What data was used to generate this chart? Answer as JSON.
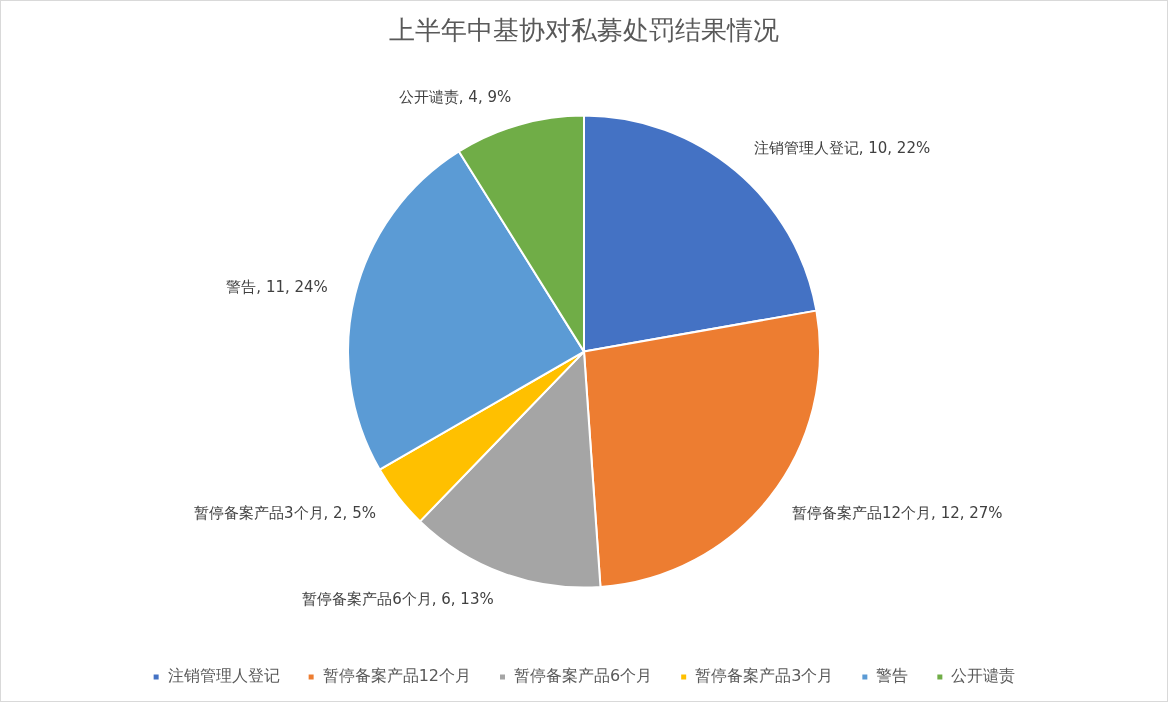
{
  "chart_data": {
    "type": "pie",
    "title": "上半年中基协对私募处罚结果情况",
    "categories": [
      "注销管理人登记",
      "暂停备案产品12个月",
      "暂停备案产品6个月",
      "暂停备案产品3个月",
      "警告",
      "公开谴责"
    ],
    "values": [
      10,
      12,
      6,
      2,
      11,
      4
    ],
    "colors": [
      "#4472c4",
      "#ed7d31",
      "#a5a5a5",
      "#ffc000",
      "#5b9bd5",
      "#70ad47"
    ],
    "value_labels": [
      "注销管理人登记, 10, 22%",
      "暂停备案产品12个月, 12, 27%",
      "暂停备案产品6个月, 6, 13%",
      "暂停备案产品3个月, 2, 5%",
      "警告, 11, 24%",
      "公开谴责, 4, 9%"
    ],
    "legend": "bottom"
  }
}
